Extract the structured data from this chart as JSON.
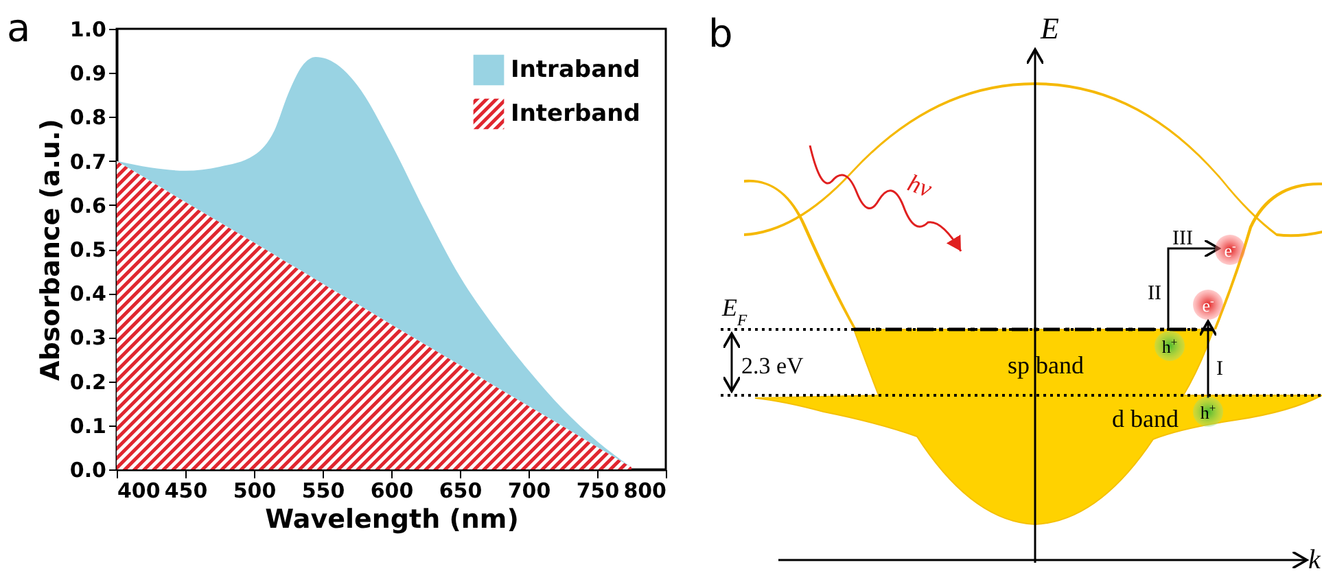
{
  "chart_data": [
    {
      "type": "area",
      "title": "a",
      "xlabel": "Wavelength (nm)",
      "ylabel": "Absorbance (a.u.)",
      "stacked": true,
      "legend": "top right",
      "x": [
        400,
        425,
        450,
        475,
        500,
        515,
        525,
        535,
        545,
        560,
        575,
        600,
        625,
        650,
        675,
        700,
        725,
        750,
        775
      ],
      "series": [
        {
          "name": "Interband",
          "color": "#e0262f",
          "values": [
            0.7,
            0.654,
            0.607,
            0.561,
            0.515,
            0.487,
            0.468,
            0.45,
            0.431,
            0.403,
            0.376,
            0.329,
            0.283,
            0.237,
            0.19,
            0.144,
            0.098,
            0.051,
            0.005
          ]
        },
        {
          "name": "Intraband",
          "color": "#99d3e3",
          "values": [
            0,
            0.031,
            0.071,
            0.126,
            0.198,
            0.283,
            0.385,
            0.465,
            0.505,
            0.517,
            0.497,
            0.41,
            0.3,
            0.201,
            0.134,
            0.081,
            0.039,
            0.013,
            0
          ]
        }
      ],
      "xlim": [
        400,
        800
      ],
      "xticks": [
        400,
        450,
        500,
        550,
        600,
        650,
        700,
        750,
        800
      ],
      "ylim": [
        0,
        1.0
      ],
      "yticks": [
        {
          "value": 0,
          "label": "0.0"
        },
        0.1,
        0.2,
        0.3,
        0.4,
        0.5,
        0.6,
        0.7,
        0.8,
        0.9,
        {
          "value": 1,
          "label": "1.0"
        }
      ]
    },
    {
      "type": "other",
      "title": "b",
      "annotations": [
        "E",
        "k",
        "E$_{F}$",
        "2.3 eV",
        "sp band",
        "d band",
        "hν",
        "I",
        "II",
        "III",
        "e$^{-}$",
        "e$^{-}$",
        "h$^{+}$",
        "h$^{+}$"
      ]
    }
  ]
}
